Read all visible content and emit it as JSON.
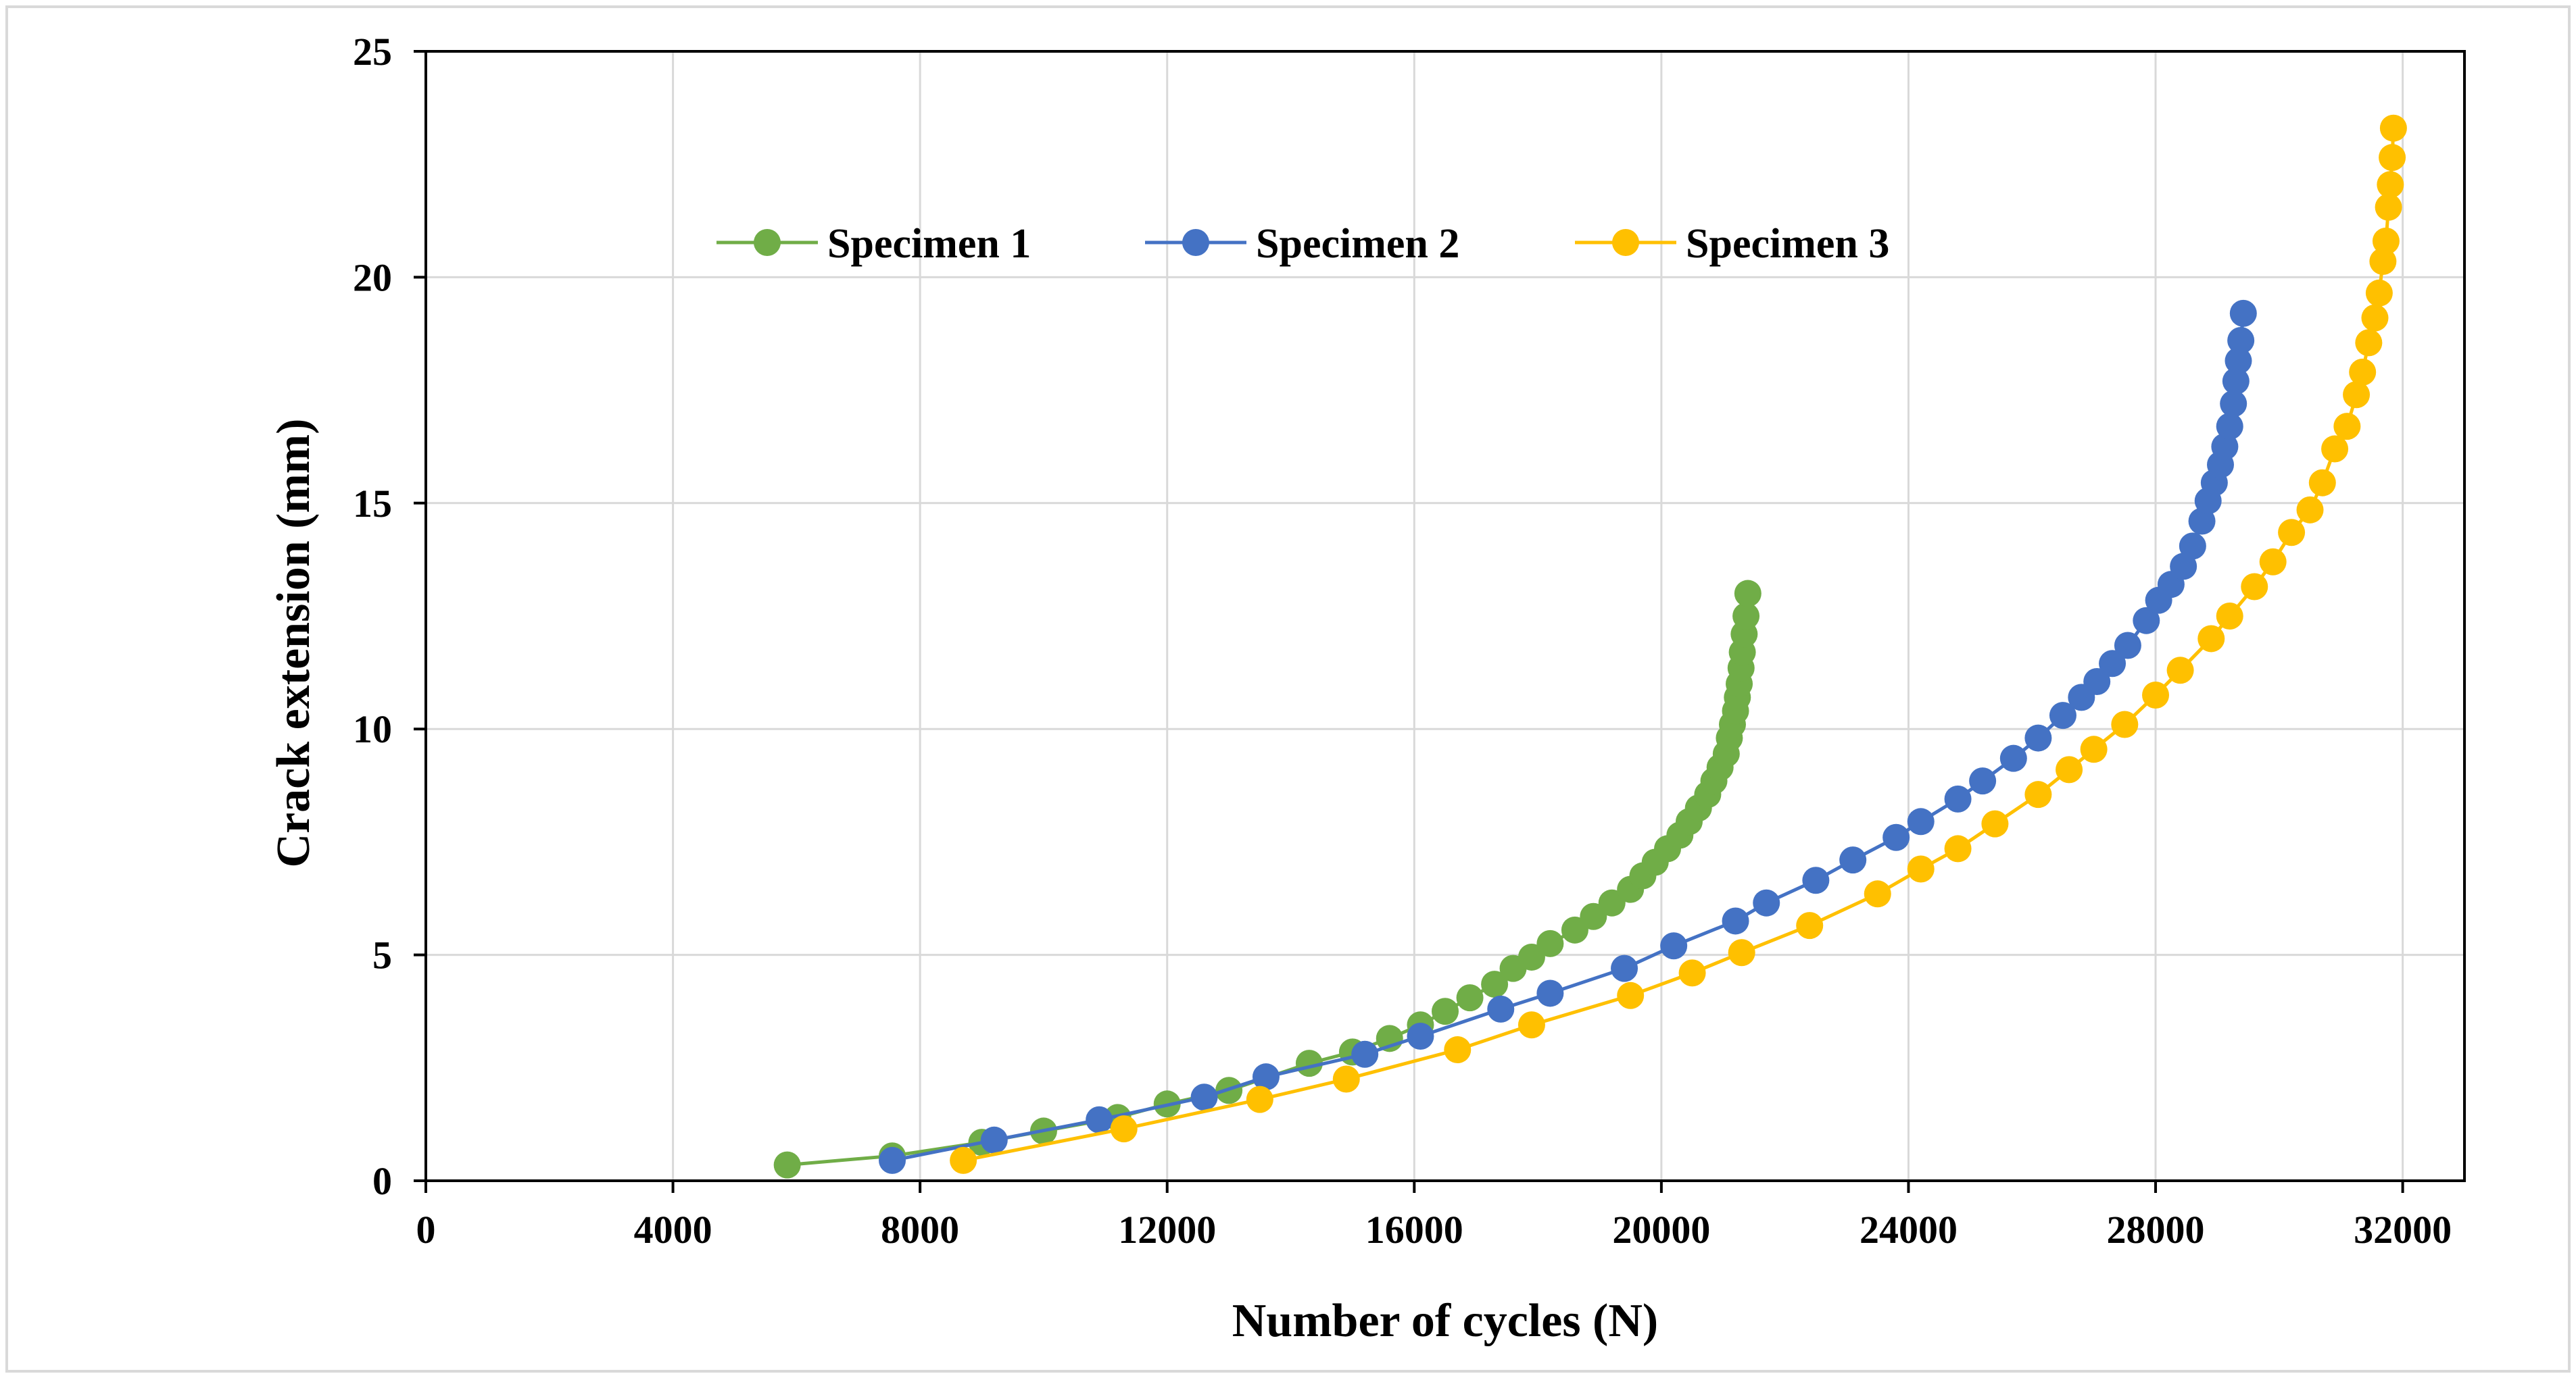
{
  "chart_data": {
    "type": "line",
    "title": "",
    "xlabel": "Number  of cycles (N)",
    "ylabel": "Crack extension (mm)",
    "xlim": [
      0,
      33000
    ],
    "ylim": [
      0,
      25
    ],
    "xticks": [
      0,
      4000,
      8000,
      12000,
      16000,
      20000,
      24000,
      28000,
      32000
    ],
    "xtick_labels": [
      "0",
      "4000",
      "8000",
      "12000",
      "16000",
      "20000",
      "24000",
      "28000",
      "32000"
    ],
    "yticks": [
      0,
      5,
      10,
      15,
      20,
      25
    ],
    "ytick_labels": [
      "0",
      "5",
      "10",
      "15",
      "20",
      "25"
    ],
    "grid": true,
    "legend_position": "top",
    "series": [
      {
        "name": "Specimen 1",
        "color": "#70ad47",
        "x": [
          5850,
          7550,
          9000,
          10000,
          11200,
          12000,
          13000,
          14300,
          15000,
          15600,
          16100,
          16500,
          16900,
          17300,
          17600,
          17900,
          18200,
          18600,
          18900,
          19200,
          19500,
          19700,
          19900,
          20100,
          20300,
          20450,
          20600,
          20750,
          20850,
          20950,
          21050,
          21100,
          21150,
          21200,
          21230,
          21260,
          21290,
          21310,
          21340,
          21370,
          21400
        ],
        "y": [
          0.35,
          0.55,
          0.85,
          1.1,
          1.4,
          1.7,
          2.0,
          2.6,
          2.85,
          3.15,
          3.45,
          3.75,
          4.05,
          4.35,
          4.7,
          4.95,
          5.25,
          5.55,
          5.85,
          6.15,
          6.45,
          6.75,
          7.05,
          7.35,
          7.65,
          7.95,
          8.25,
          8.55,
          8.85,
          9.15,
          9.45,
          9.8,
          10.1,
          10.4,
          10.7,
          11.0,
          11.35,
          11.7,
          12.1,
          12.5,
          13.0
        ]
      },
      {
        "name": "Specimen 2",
        "color": "#4472c4",
        "x": [
          7550,
          9200,
          10900,
          12600,
          13600,
          15200,
          16100,
          17400,
          18200,
          19400,
          20200,
          21200,
          21700,
          22500,
          23100,
          23800,
          24200,
          24800,
          25200,
          25700,
          26100,
          26500,
          26800,
          27050,
          27300,
          27550,
          27850,
          28050,
          28250,
          28450,
          28600,
          28750,
          28850,
          28950,
          29050,
          29120,
          29200,
          29260,
          29300,
          29340,
          29380,
          29420
        ],
        "y": [
          0.45,
          0.9,
          1.35,
          1.85,
          2.3,
          2.8,
          3.2,
          3.8,
          4.15,
          4.7,
          5.2,
          5.75,
          6.15,
          6.65,
          7.1,
          7.6,
          7.95,
          8.45,
          8.85,
          9.35,
          9.8,
          10.3,
          10.7,
          11.05,
          11.45,
          11.85,
          12.4,
          12.85,
          13.2,
          13.6,
          14.05,
          14.6,
          15.05,
          15.45,
          15.85,
          16.25,
          16.7,
          17.2,
          17.7,
          18.15,
          18.6,
          19.2
        ]
      },
      {
        "name": "Specimen 3",
        "color": "#ffc000",
        "x": [
          8700,
          11300,
          13500,
          14900,
          16700,
          17900,
          19500,
          20500,
          21300,
          22400,
          23500,
          24200,
          24800,
          25400,
          26100,
          26600,
          27000,
          27500,
          28000,
          28400,
          28900,
          29200,
          29600,
          29900,
          30200,
          30500,
          30700,
          30900,
          31100,
          31250,
          31350,
          31450,
          31550,
          31620,
          31680,
          31730,
          31770,
          31800,
          31830,
          31850
        ],
        "y": [
          0.45,
          1.15,
          1.8,
          2.25,
          2.9,
          3.45,
          4.1,
          4.6,
          5.05,
          5.65,
          6.35,
          6.9,
          7.35,
          7.9,
          8.55,
          9.1,
          9.55,
          10.1,
          10.75,
          11.3,
          12.0,
          12.5,
          13.15,
          13.7,
          14.35,
          14.85,
          15.45,
          16.2,
          16.7,
          17.4,
          17.9,
          18.55,
          19.1,
          19.65,
          20.35,
          20.8,
          21.55,
          22.05,
          22.65,
          23.3
        ]
      }
    ]
  }
}
